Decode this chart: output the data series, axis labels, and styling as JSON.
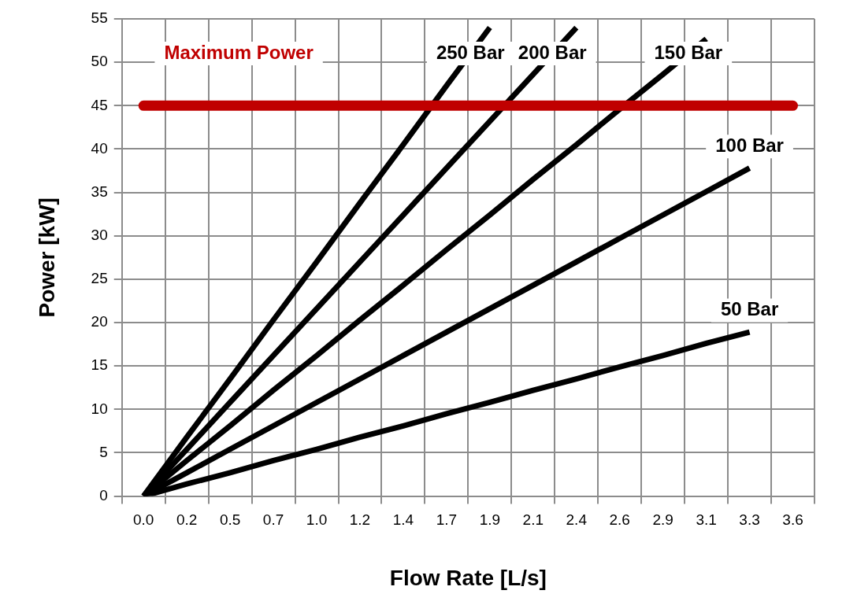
{
  "chart_data": {
    "type": "line",
    "xlabel": "Flow Rate [L/s]",
    "ylabel": "Power [kW]",
    "categories": [
      "0.0",
      "0.2",
      "0.5",
      "0.7",
      "1.0",
      "1.2",
      "1.4",
      "1.7",
      "1.9",
      "2.1",
      "2.4",
      "2.6",
      "2.9",
      "3.1",
      "3.3",
      "3.6"
    ],
    "series": [
      {
        "name": "Maximum Power",
        "color": "#c00000",
        "values": [
          45,
          45,
          45,
          45,
          45,
          45,
          45,
          45,
          45,
          45,
          45,
          45,
          45,
          45,
          45,
          45
        ]
      },
      {
        "name": "250 Bar",
        "color": "#000000",
        "values": [
          0,
          6.8,
          13.5,
          20.3,
          27,
          33.8,
          40.5,
          47.3,
          54,
          null,
          null,
          null,
          null,
          null,
          null,
          null
        ]
      },
      {
        "name": "200 Bar",
        "color": "#000000",
        "values": [
          0,
          5.4,
          10.8,
          16.2,
          21.6,
          27,
          32.4,
          37.8,
          43.2,
          48.6,
          54,
          null,
          null,
          null,
          null,
          null
        ]
      },
      {
        "name": "150 Bar",
        "color": "#000000",
        "values": [
          0,
          4.1,
          8.1,
          12.2,
          16.2,
          20.3,
          24.3,
          28.4,
          32.4,
          36.5,
          40.5,
          44.6,
          48.6,
          52.7,
          null,
          null
        ]
      },
      {
        "name": "100 Bar",
        "color": "#000000",
        "values": [
          0,
          2.7,
          5.4,
          8.1,
          10.8,
          13.5,
          16.2,
          18.9,
          21.6,
          24.3,
          27,
          29.7,
          32.4,
          35.1,
          37.8,
          null
        ]
      },
      {
        "name": "50 Bar",
        "color": "#000000",
        "values": [
          0,
          1.4,
          2.7,
          4.1,
          5.4,
          6.8,
          8.1,
          9.5,
          10.8,
          12.2,
          13.5,
          14.9,
          16.2,
          17.6,
          18.9,
          null
        ]
      }
    ],
    "ylim": [
      0,
      55
    ],
    "yticks": [
      0,
      5,
      10,
      15,
      20,
      25,
      30,
      35,
      40,
      45,
      50,
      55
    ],
    "grid": true,
    "legend": false,
    "marker": "none",
    "line_style": "solid"
  }
}
